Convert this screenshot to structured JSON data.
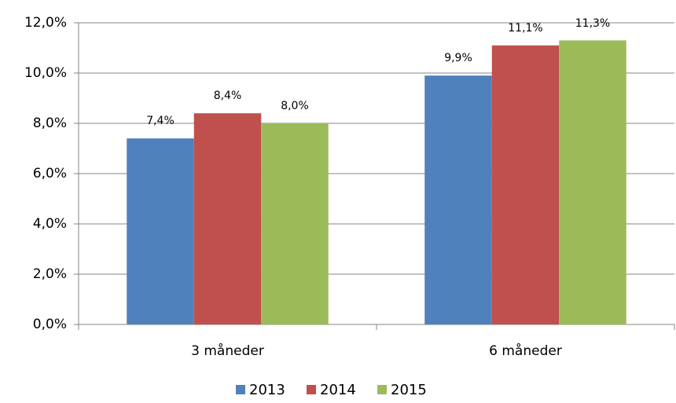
{
  "chart_data": {
    "type": "bar",
    "categories": [
      "3 måneder",
      "6 måneder"
    ],
    "series": [
      {
        "name": "2013",
        "color": "#4f81bd",
        "values": [
          7.4,
          9.9
        ],
        "value_labels": [
          "7,4%",
          "9,9%"
        ]
      },
      {
        "name": "2014",
        "color": "#c0504d",
        "values": [
          8.4,
          11.1
        ],
        "value_labels": [
          "8,4%",
          "11,1%"
        ]
      },
      {
        "name": "2015",
        "color": "#9bbb59",
        "values": [
          8.0,
          11.3
        ],
        "value_labels": [
          "8,0%",
          "11,3%"
        ]
      }
    ],
    "ylim": [
      0,
      12
    ],
    "yticks": [
      {
        "value": 0,
        "label": "0,0%"
      },
      {
        "value": 2,
        "label": "2,0%"
      },
      {
        "value": 4,
        "label": "4,0%"
      },
      {
        "value": 6,
        "label": "6,0%"
      },
      {
        "value": 8,
        "label": "8,0%"
      },
      {
        "value": 10,
        "label": "10,0%"
      },
      {
        "value": 12,
        "label": "12,0%"
      }
    ],
    "grid": true,
    "legend": "bottom"
  }
}
